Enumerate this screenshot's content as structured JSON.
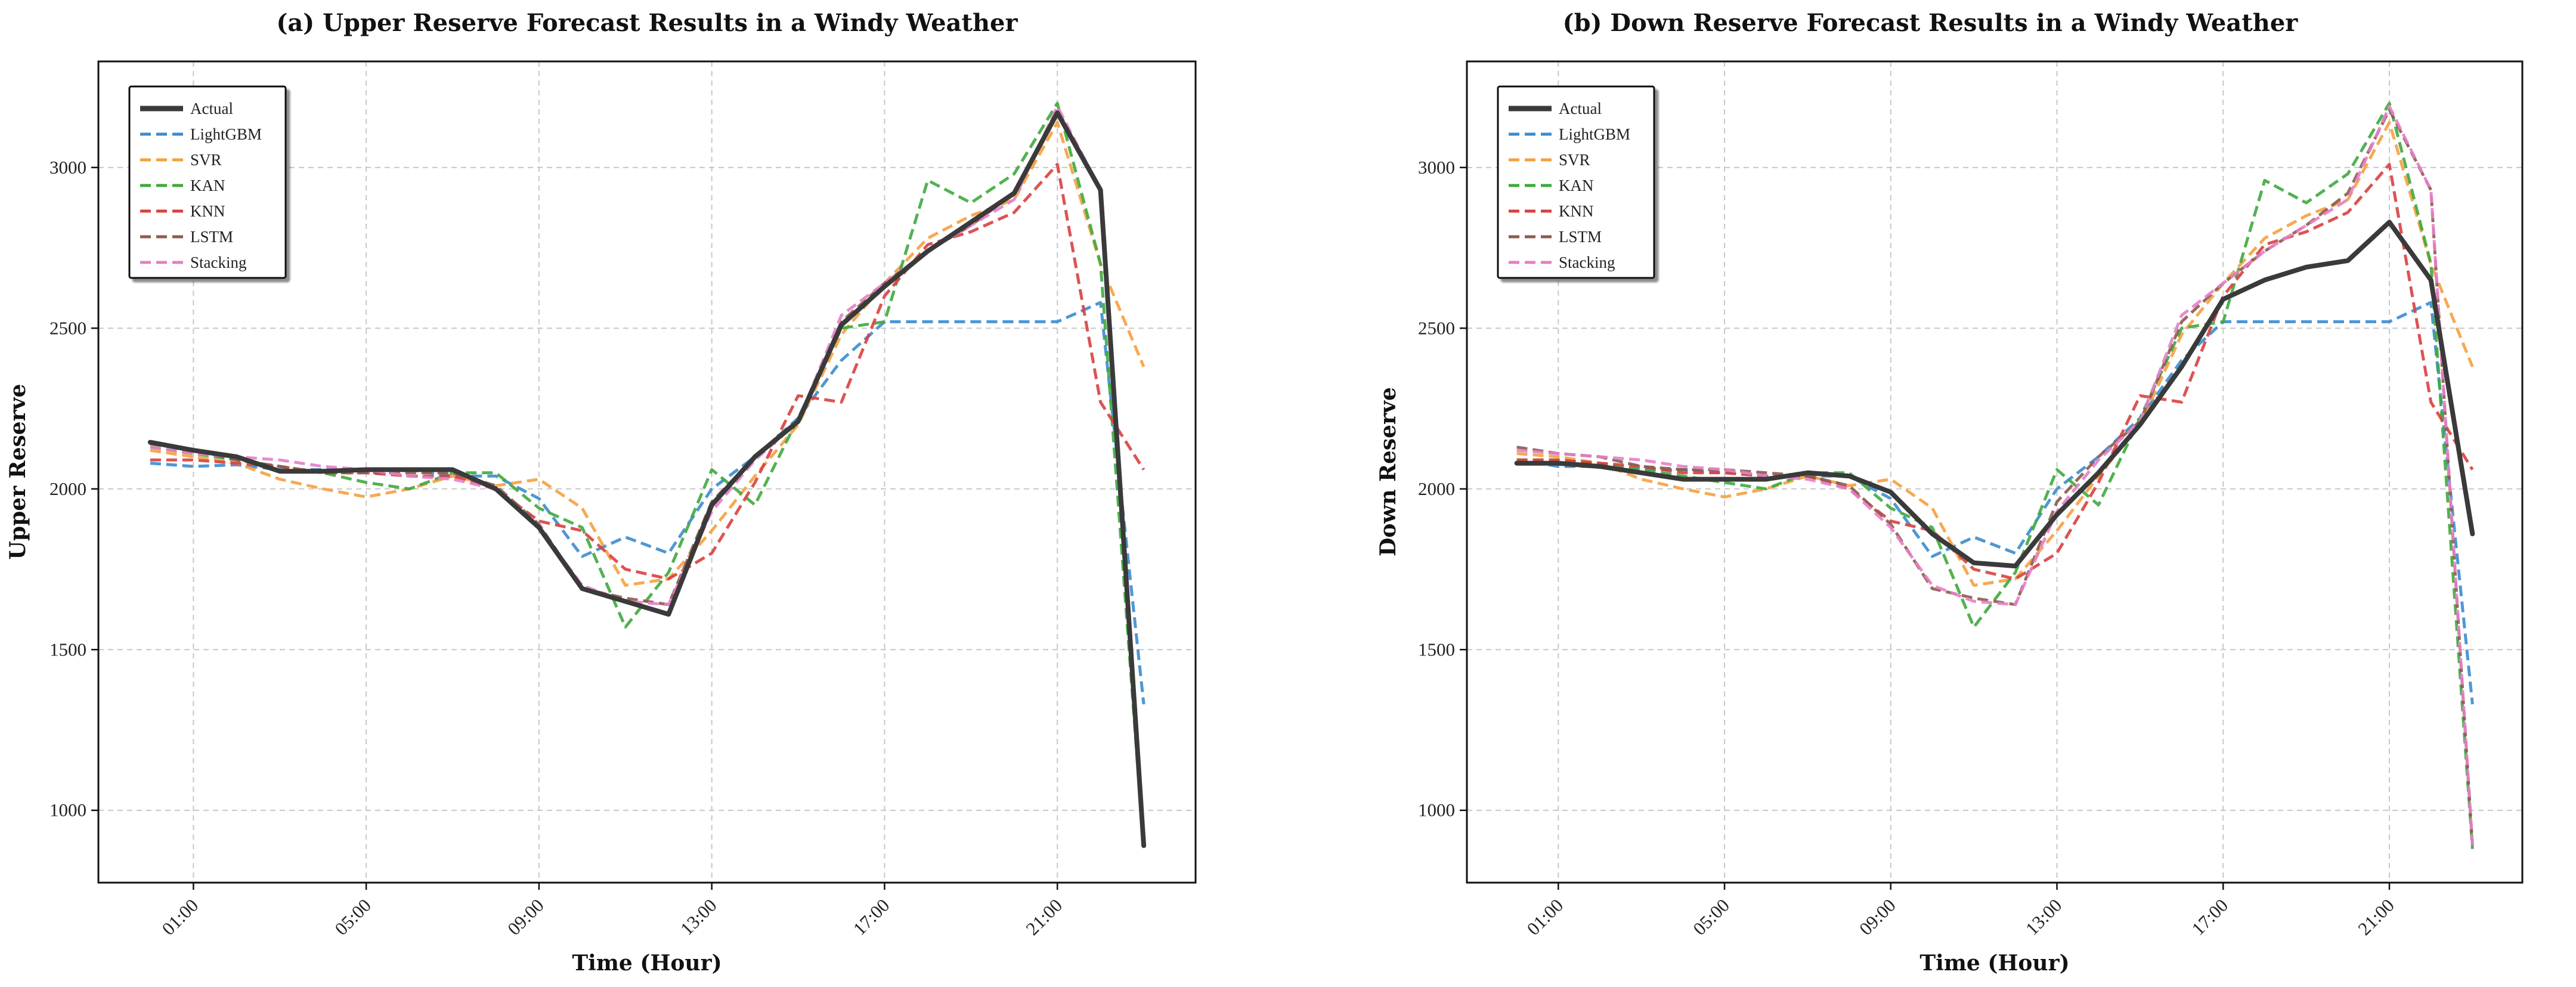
{
  "chart_data": [
    {
      "type": "line",
      "title": "(a) Upper Reserve Forecast Results in a Windy Weather",
      "xlabel": "Time (Hour)",
      "ylabel": "Upper Reserve",
      "xlim": [
        -1.2,
        24.2
      ],
      "ylim": [
        775,
        3330
      ],
      "x_ticks": [
        1,
        5,
        9,
        13,
        17,
        21
      ],
      "x_tick_labels": [
        "01:00",
        "05:00",
        "09:00",
        "13:00",
        "17:00",
        "21:00"
      ],
      "y_ticks": [
        1000,
        1500,
        2000,
        2500,
        3000
      ],
      "grid": true,
      "legend_position": "top-left",
      "x": [
        0,
        1,
        2,
        3,
        4,
        5,
        6,
        7,
        8,
        9,
        10,
        11,
        12,
        13,
        14,
        15,
        16,
        17,
        18,
        19,
        20,
        21,
        22,
        23
      ],
      "series": [
        {
          "name": "Actual",
          "color": "#3a3a3a",
          "style": "solid",
          "values": [
            2145,
            2120,
            2100,
            2055,
            2055,
            2060,
            2060,
            2060,
            2000,
            1880,
            1690,
            1650,
            1610,
            1950,
            2100,
            2210,
            2510,
            2630,
            2740,
            2830,
            2920,
            3170,
            2930,
            890
          ]
        },
        {
          "name": "LightGBM",
          "color": "#3b8ccf",
          "style": "dashed",
          "values": [
            2080,
            2070,
            2075,
            2060,
            2060,
            2060,
            2060,
            2040,
            2040,
            1970,
            1790,
            1850,
            1800,
            2000,
            2100,
            2220,
            2400,
            2520,
            2520,
            2520,
            2520,
            2520,
            2580,
            1330
          ]
        },
        {
          "name": "SVR",
          "color": "#f5a040",
          "style": "dashed",
          "values": [
            2120,
            2100,
            2080,
            2030,
            2000,
            1975,
            2000,
            2040,
            2010,
            2030,
            1940,
            1700,
            1720,
            1870,
            2040,
            2200,
            2480,
            2640,
            2780,
            2850,
            2900,
            3140,
            2700,
            2380
          ]
        },
        {
          "name": "KAN",
          "color": "#3fa83f",
          "style": "dashed",
          "values": [
            2130,
            2110,
            2090,
            2070,
            2050,
            2020,
            2000,
            2050,
            2050,
            1940,
            1880,
            1570,
            1740,
            2060,
            1950,
            2220,
            2500,
            2520,
            2960,
            2890,
            2980,
            3200,
            2700,
            880
          ]
        },
        {
          "name": "KNN",
          "color": "#d94040",
          "style": "dashed",
          "values": [
            2090,
            2090,
            2080,
            2070,
            2050,
            2050,
            2040,
            2040,
            2000,
            1900,
            1870,
            1750,
            1720,
            1800,
            2020,
            2290,
            2270,
            2600,
            2760,
            2800,
            2860,
            3010,
            2270,
            2060
          ]
        },
        {
          "name": "LSTM",
          "color": "#8c5b4e",
          "style": "dashed",
          "values": [
            2140,
            2120,
            2090,
            2070,
            2050,
            2050,
            2050,
            2050,
            2010,
            1890,
            1690,
            1660,
            1640,
            1960,
            2100,
            2210,
            2520,
            2640,
            2740,
            2820,
            2920,
            3180,
            2930,
            890
          ]
        },
        {
          "name": "Stacking",
          "color": "#e57fc8",
          "style": "dashed",
          "values": [
            2130,
            2110,
            2100,
            2090,
            2070,
            2060,
            2040,
            2030,
            2000,
            1880,
            1700,
            1650,
            1640,
            1930,
            2090,
            2210,
            2540,
            2640,
            2740,
            2820,
            2900,
            3190,
            2930,
            890
          ]
        }
      ]
    },
    {
      "type": "line",
      "title": "(b) Down Reserve Forecast Results in a Windy Weather",
      "xlabel": "Time (Hour)",
      "ylabel": "Down Reserve",
      "xlim": [
        -1.2,
        24.2
      ],
      "ylim": [
        775,
        3330
      ],
      "x_ticks": [
        1,
        5,
        9,
        13,
        17,
        21
      ],
      "x_tick_labels": [
        "01:00",
        "05:00",
        "09:00",
        "13:00",
        "17:00",
        "21:00"
      ],
      "y_ticks": [
        1000,
        1500,
        2000,
        2500,
        3000
      ],
      "grid": true,
      "legend_position": "top-left",
      "x": [
        0,
        1,
        2,
        3,
        4,
        5,
        6,
        7,
        8,
        9,
        10,
        11,
        12,
        13,
        14,
        15,
        16,
        17,
        18,
        19,
        20,
        21,
        22,
        23
      ],
      "series": [
        {
          "name": "Actual",
          "color": "#3a3a3a",
          "style": "solid",
          "values": [
            2080,
            2080,
            2070,
            2050,
            2030,
            2030,
            2030,
            2050,
            2040,
            1990,
            1860,
            1770,
            1760,
            1920,
            2050,
            2200,
            2380,
            2590,
            2650,
            2690,
            2710,
            2830,
            2650,
            1860
          ]
        },
        {
          "name": "LightGBM",
          "color": "#3b8ccf",
          "style": "dashed",
          "values": [
            2090,
            2070,
            2070,
            2060,
            2060,
            2050,
            2040,
            2040,
            2040,
            1970,
            1790,
            1850,
            1800,
            2000,
            2100,
            2220,
            2400,
            2520,
            2520,
            2520,
            2520,
            2520,
            2580,
            1330
          ]
        },
        {
          "name": "SVR",
          "color": "#f5a040",
          "style": "dashed",
          "values": [
            2110,
            2100,
            2080,
            2030,
            2000,
            1975,
            2000,
            2040,
            2010,
            2030,
            1940,
            1700,
            1720,
            1870,
            2040,
            2200,
            2480,
            2640,
            2780,
            2850,
            2900,
            3140,
            2700,
            2380
          ]
        },
        {
          "name": "KAN",
          "color": "#3fa83f",
          "style": "dashed",
          "values": [
            2090,
            2090,
            2080,
            2060,
            2040,
            2020,
            2000,
            2050,
            2050,
            1940,
            1880,
            1570,
            1740,
            2060,
            1950,
            2220,
            2500,
            2520,
            2960,
            2890,
            2980,
            3200,
            2700,
            880
          ]
        },
        {
          "name": "KNN",
          "color": "#d94040",
          "style": "dashed",
          "values": [
            2090,
            2090,
            2080,
            2070,
            2050,
            2050,
            2040,
            2040,
            2000,
            1900,
            1870,
            1750,
            1720,
            1800,
            2020,
            2290,
            2270,
            2600,
            2760,
            2800,
            2860,
            3010,
            2270,
            2060
          ]
        },
        {
          "name": "LSTM",
          "color": "#8c5b4e",
          "style": "dashed",
          "values": [
            2130,
            2110,
            2100,
            2070,
            2060,
            2060,
            2050,
            2040,
            2010,
            1890,
            1690,
            1660,
            1640,
            1960,
            2100,
            2210,
            2520,
            2640,
            2740,
            2820,
            2920,
            3180,
            2930,
            890
          ]
        },
        {
          "name": "Stacking",
          "color": "#e57fc8",
          "style": "dashed",
          "values": [
            2120,
            2110,
            2100,
            2090,
            2070,
            2060,
            2040,
            2030,
            2000,
            1880,
            1700,
            1650,
            1640,
            1930,
            2090,
            2210,
            2540,
            2640,
            2740,
            2820,
            2900,
            3190,
            2930,
            890
          ]
        }
      ]
    }
  ]
}
